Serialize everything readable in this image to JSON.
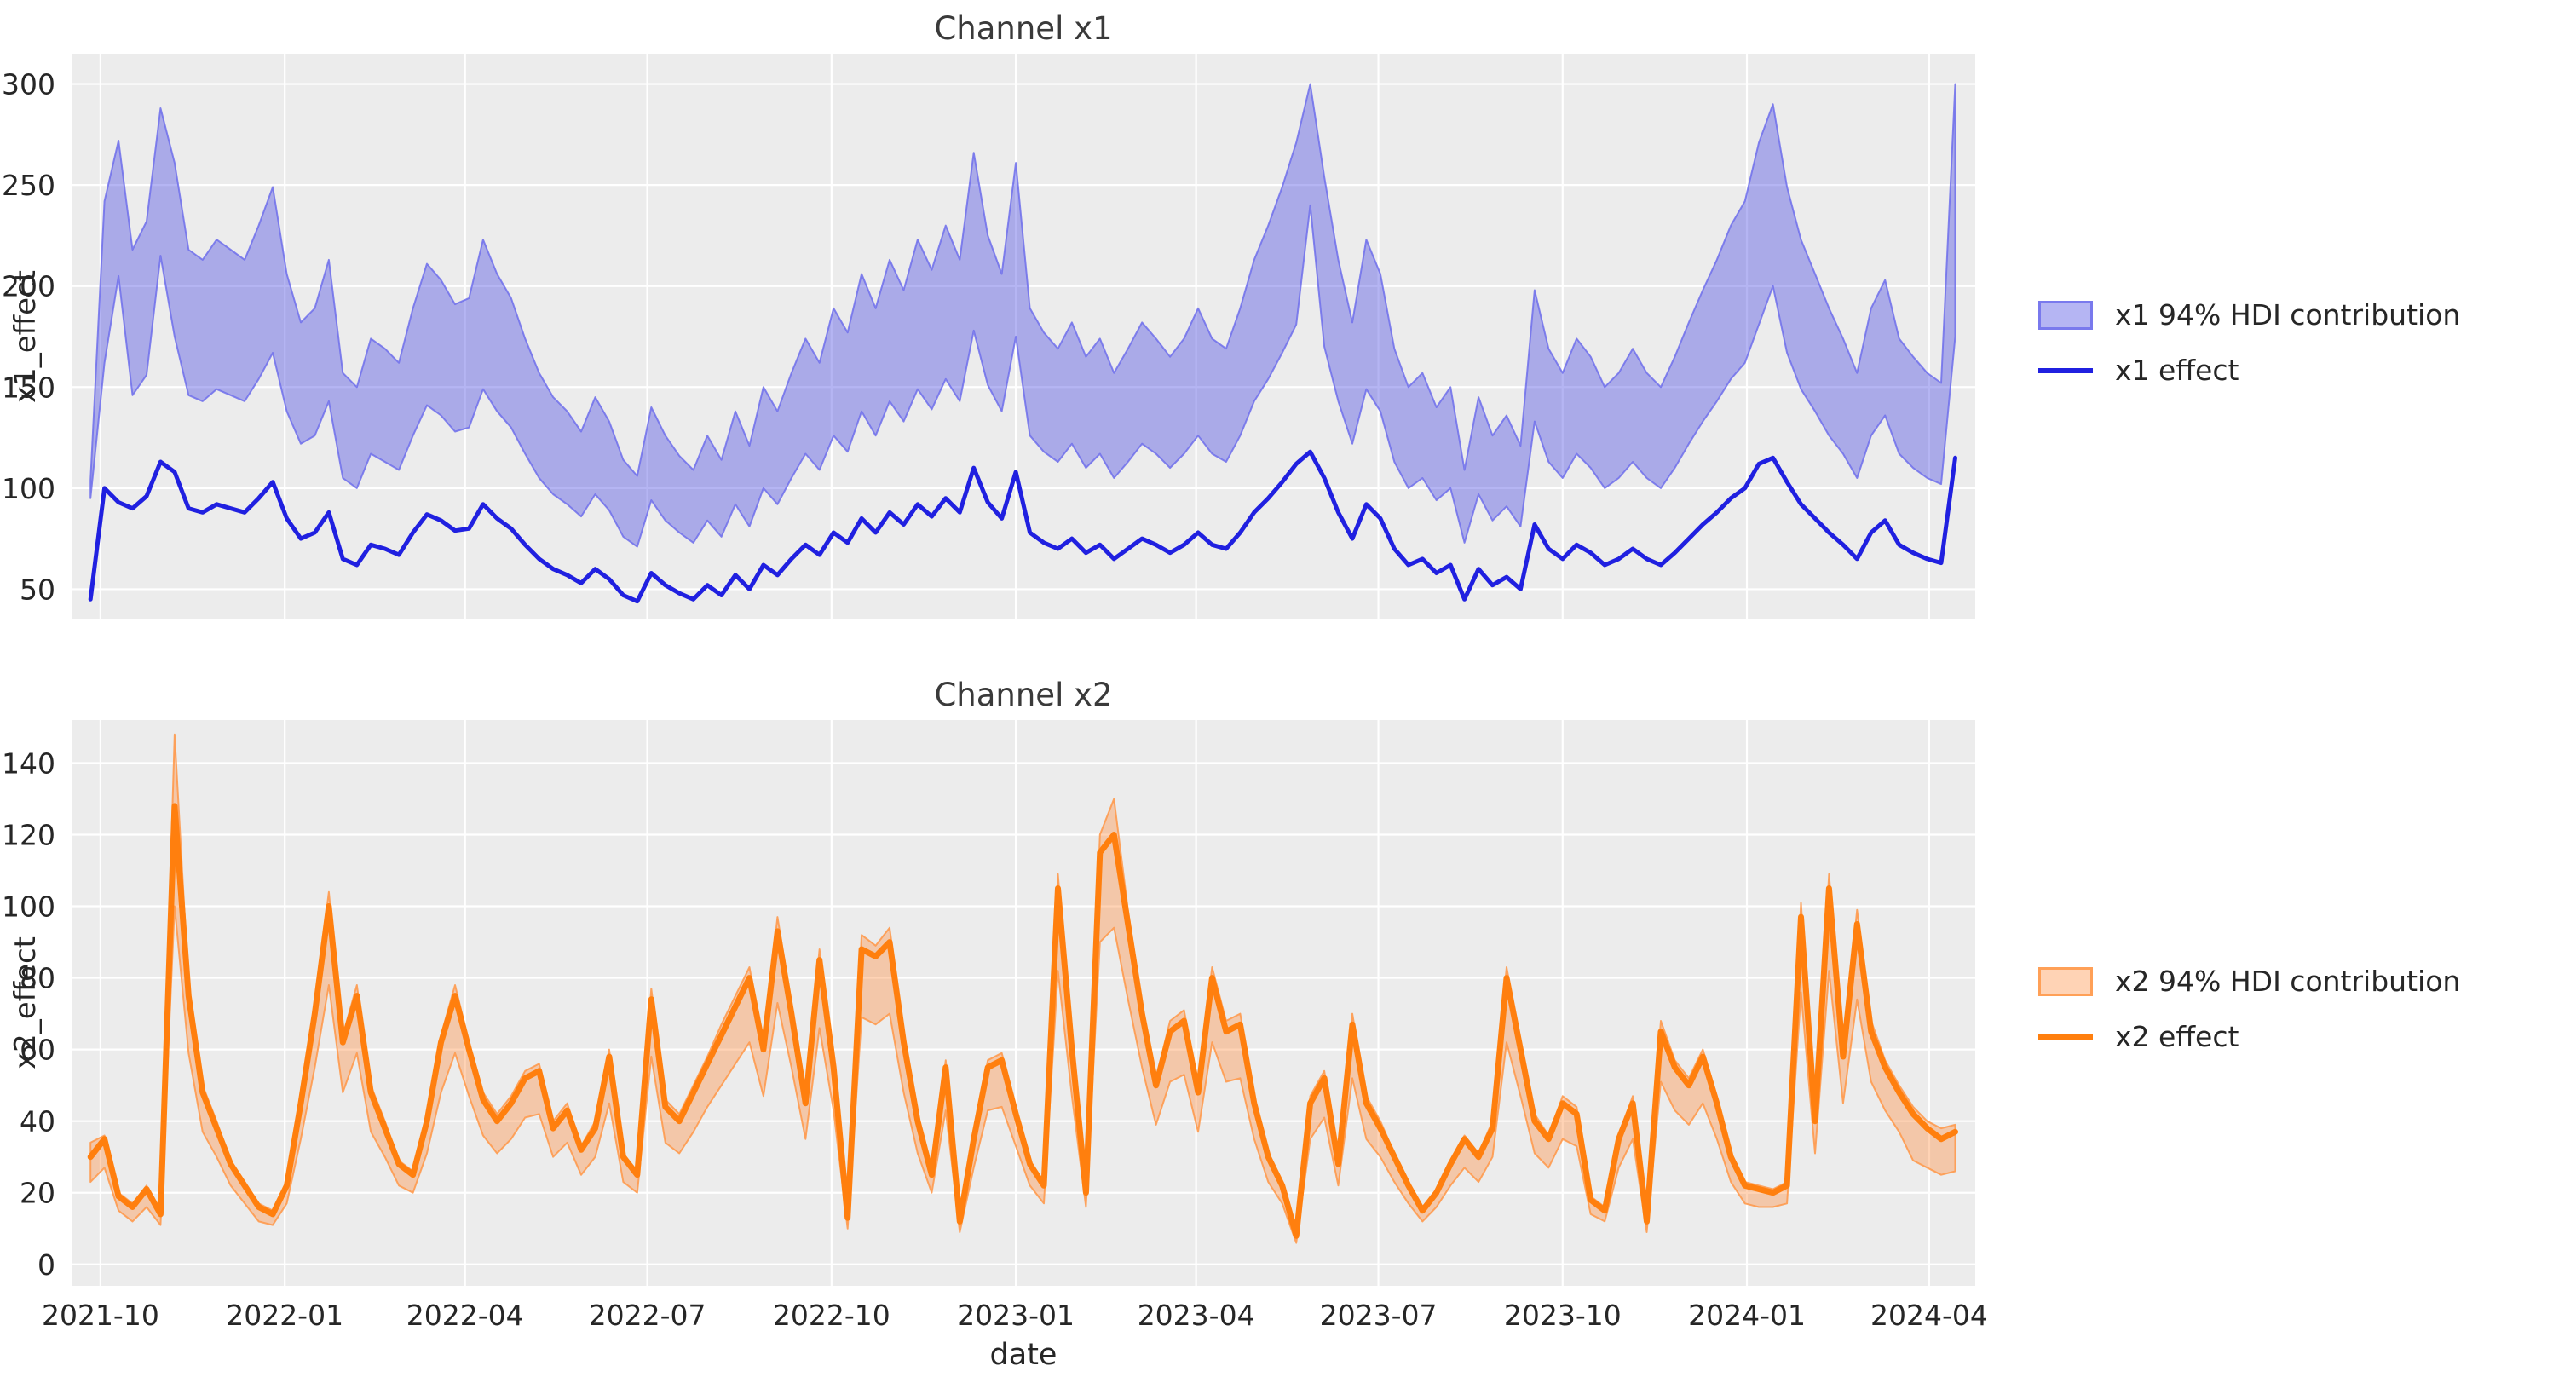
{
  "figure": {
    "background": "#ffffff",
    "plot_background": "#ececec",
    "grid_color": "#ffffff",
    "text_color": "#262626"
  },
  "xlabel": "date",
  "xlim": [
    "2021-09-17",
    "2024-04-24"
  ],
  "x_tick_dates": [
    "2021-10-01",
    "2022-01-01",
    "2022-04-01",
    "2022-07-01",
    "2022-10-01",
    "2023-01-01",
    "2023-04-01",
    "2023-07-01",
    "2023-10-01",
    "2024-01-01",
    "2024-04-01"
  ],
  "x_tick_labels": [
    "2021-10",
    "2022-01",
    "2022-04",
    "2022-07",
    "2022-10",
    "2023-01",
    "2023-04",
    "2023-07",
    "2023-10",
    "2024-01",
    "2024-04"
  ],
  "chart_data": [
    {
      "type": "line",
      "title": "Channel x1",
      "ylabel": "x1_effect",
      "legend_band": "x1 94% HDI contribution",
      "legend_line": "x1 effect",
      "line_color": "#2020e0",
      "band_fill": "rgba(92,92,228,0.45)",
      "band_edge": "rgba(110,110,235,0.85)",
      "ylim": [
        35,
        315
      ],
      "yticks": [
        50,
        100,
        150,
        200,
        250,
        300
      ],
      "x_start": "2021-09-26",
      "x_step_days": 7,
      "effect": [
        45,
        100,
        93,
        90,
        96,
        113,
        108,
        90,
        88,
        92,
        90,
        88,
        95,
        103,
        85,
        75,
        78,
        88,
        65,
        62,
        72,
        70,
        67,
        78,
        87,
        84,
        79,
        80,
        92,
        85,
        80,
        72,
        65,
        60,
        57,
        53,
        60,
        55,
        47,
        44,
        58,
        52,
        48,
        45,
        52,
        47,
        57,
        50,
        62,
        57,
        65,
        72,
        67,
        78,
        73,
        85,
        78,
        88,
        82,
        92,
        86,
        95,
        88,
        110,
        93,
        85,
        108,
        78,
        73,
        70,
        75,
        68,
        72,
        65,
        70,
        75,
        72,
        68,
        72,
        78,
        72,
        70,
        78,
        88,
        95,
        103,
        112,
        118,
        105,
        88,
        75,
        92,
        85,
        70,
        62,
        65,
        58,
        62,
        45,
        60,
        52,
        56,
        50,
        82,
        70,
        65,
        72,
        68,
        62,
        65,
        70,
        65,
        62,
        68,
        75,
        82,
        88,
        95,
        100,
        112,
        115,
        103,
        92,
        85,
        78,
        72,
        65,
        78,
        84,
        72,
        68,
        65,
        63,
        115
      ],
      "hdi_lower": [
        95,
        162,
        205,
        146,
        156,
        215,
        175,
        146,
        143,
        149,
        146,
        143,
        154,
        167,
        138,
        122,
        126,
        143,
        105,
        100,
        117,
        113,
        109,
        126,
        141,
        136,
        128,
        130,
        149,
        138,
        130,
        117,
        105,
        97,
        92,
        86,
        97,
        89,
        76,
        71,
        94,
        84,
        78,
        73,
        84,
        76,
        92,
        81,
        100,
        92,
        105,
        117,
        109,
        126,
        118,
        138,
        126,
        143,
        133,
        149,
        139,
        154,
        143,
        178,
        151,
        138,
        175,
        126,
        118,
        113,
        122,
        110,
        117,
        105,
        113,
        122,
        117,
        110,
        117,
        126,
        117,
        113,
        126,
        143,
        154,
        167,
        181,
        240,
        170,
        143,
        122,
        149,
        138,
        113,
        100,
        105,
        94,
        100,
        73,
        97,
        84,
        91,
        81,
        133,
        113,
        105,
        117,
        110,
        100,
        105,
        113,
        105,
        100,
        110,
        122,
        133,
        143,
        154,
        162,
        181,
        200,
        167,
        149,
        138,
        126,
        117,
        105,
        126,
        136,
        117,
        110,
        105,
        102,
        175
      ],
      "hdi_upper": [
        104,
        242,
        272,
        218,
        232,
        288,
        261,
        218,
        213,
        223,
        218,
        213,
        230,
        249,
        206,
        182,
        189,
        213,
        157,
        150,
        174,
        169,
        162,
        189,
        211,
        203,
        191,
        194,
        223,
        206,
        194,
        174,
        157,
        145,
        138,
        128,
        145,
        133,
        114,
        106,
        140,
        126,
        116,
        109,
        126,
        114,
        138,
        121,
        150,
        138,
        157,
        174,
        162,
        189,
        177,
        206,
        189,
        213,
        198,
        223,
        208,
        230,
        213,
        266,
        225,
        206,
        261,
        189,
        177,
        169,
        182,
        165,
        174,
        157,
        169,
        182,
        174,
        165,
        174,
        189,
        174,
        169,
        189,
        213,
        230,
        249,
        271,
        300,
        254,
        213,
        182,
        223,
        206,
        169,
        150,
        157,
        140,
        150,
        109,
        145,
        126,
        136,
        121,
        198,
        169,
        157,
        174,
        165,
        150,
        157,
        169,
        157,
        150,
        165,
        182,
        198,
        213,
        230,
        242,
        271,
        290,
        249,
        223,
        206,
        189,
        174,
        157,
        189,
        203,
        174,
        165,
        157,
        152,
        300
      ]
    },
    {
      "type": "line",
      "title": "Channel x2",
      "ylabel": "x2_effect",
      "legend_band": "x2 94% HDI contribution",
      "legend_line": "x2 effect",
      "line_color": "#ff7f0e",
      "band_fill": "rgba(255,140,60,0.38)",
      "band_edge": "rgba(255,150,70,0.85)",
      "ylim": [
        -6,
        152
      ],
      "yticks": [
        0,
        20,
        40,
        60,
        80,
        100,
        120,
        140
      ],
      "x_start": "2021-09-26",
      "x_step_days": 7,
      "effect": [
        30,
        35,
        19,
        16,
        21,
        14,
        128,
        75,
        48,
        38,
        28,
        22,
        16,
        14,
        22,
        45,
        70,
        100,
        62,
        75,
        48,
        38,
        28,
        25,
        40,
        62,
        75,
        60,
        46,
        40,
        45,
        52,
        54,
        38,
        43,
        32,
        38,
        58,
        30,
        25,
        74,
        44,
        40,
        48,
        56,
        64,
        72,
        80,
        60,
        93,
        70,
        45,
        85,
        55,
        13,
        88,
        86,
        90,
        62,
        40,
        25,
        55,
        12,
        35,
        55,
        57,
        42,
        28,
        22,
        105,
        60,
        20,
        115,
        120,
        95,
        70,
        50,
        65,
        68,
        48,
        80,
        65,
        67,
        45,
        30,
        22,
        8,
        45,
        52,
        28,
        67,
        45,
        38,
        30,
        22,
        15,
        20,
        28,
        35,
        30,
        38,
        80,
        60,
        40,
        35,
        45,
        42,
        18,
        15,
        35,
        45,
        12,
        65,
        55,
        50,
        58,
        45,
        30,
        22,
        21,
        20,
        22,
        97,
        40,
        105,
        58,
        95,
        65,
        55,
        48,
        42,
        38,
        35,
        37
      ],
      "hdi_lower": [
        23,
        27,
        15,
        12,
        16,
        11,
        100,
        59,
        37,
        30,
        22,
        17,
        12,
        11,
        17,
        35,
        55,
        78,
        48,
        59,
        37,
        30,
        22,
        20,
        31,
        48,
        59,
        47,
        36,
        31,
        35,
        41,
        42,
        30,
        34,
        25,
        30,
        45,
        23,
        20,
        58,
        34,
        31,
        37,
        44,
        50,
        56,
        62,
        47,
        73,
        55,
        35,
        66,
        43,
        10,
        69,
        67,
        70,
        48,
        31,
        20,
        43,
        9,
        27,
        43,
        44,
        33,
        22,
        17,
        82,
        47,
        16,
        90,
        94,
        74,
        55,
        39,
        51,
        53,
        37,
        62,
        51,
        52,
        35,
        23,
        17,
        6,
        35,
        41,
        22,
        52,
        35,
        30,
        23,
        17,
        12,
        16,
        22,
        27,
        23,
        30,
        62,
        47,
        31,
        27,
        35,
        33,
        14,
        12,
        27,
        35,
        9,
        51,
        43,
        39,
        45,
        35,
        23,
        17,
        16,
        16,
        17,
        76,
        31,
        82,
        45,
        74,
        51,
        43,
        37,
        29,
        27,
        25,
        26
      ],
      "hdi_upper": [
        34,
        36,
        20,
        17,
        22,
        15,
        148,
        78,
        50,
        40,
        29,
        23,
        17,
        15,
        23,
        47,
        73,
        104,
        64,
        78,
        50,
        40,
        29,
        26,
        42,
        64,
        78,
        62,
        48,
        42,
        47,
        54,
        56,
        40,
        45,
        33,
        40,
        60,
        31,
        26,
        77,
        46,
        42,
        50,
        58,
        67,
        75,
        83,
        62,
        97,
        73,
        47,
        88,
        57,
        14,
        92,
        89,
        94,
        64,
        42,
        26,
        57,
        13,
        36,
        57,
        59,
        44,
        29,
        23,
        109,
        62,
        21,
        120,
        130,
        99,
        73,
        52,
        68,
        71,
        50,
        83,
        68,
        70,
        47,
        31,
        23,
        9,
        47,
        54,
        29,
        70,
        47,
        40,
        31,
        23,
        16,
        21,
        29,
        36,
        31,
        40,
        83,
        62,
        42,
        36,
        47,
        44,
        19,
        16,
        36,
        47,
        13,
        68,
        57,
        52,
        60,
        47,
        31,
        23,
        22,
        21,
        23,
        101,
        42,
        109,
        60,
        99,
        68,
        57,
        50,
        44,
        40,
        38,
        39
      ]
    }
  ]
}
